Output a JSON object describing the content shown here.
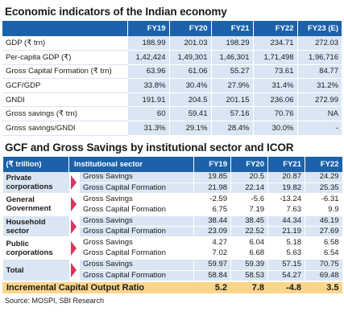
{
  "title1": "Economic indicators of the Indian economy",
  "t1": {
    "headers": [
      "FY19",
      "FY20",
      "FY21",
      "FY22",
      "FY23 (E)"
    ],
    "rows": [
      {
        "label": "GDP (₹ trn)",
        "values": [
          "188.99",
          "201.03",
          "198.29",
          "234.71",
          "272.03"
        ]
      },
      {
        "label": "Per-capita GDP (₹)",
        "values": [
          "1,42,424",
          "1,49,301",
          "1,46,301",
          "1,71,498",
          "1,96,716"
        ]
      },
      {
        "label": "Gross Capital Formation (₹ trn)",
        "values": [
          "63.96",
          "61.06",
          "55.27",
          "73.61",
          "84.77"
        ]
      },
      {
        "label": "GCF/GDP",
        "values": [
          "33.8%",
          "30.4%",
          "27.9%",
          "31.4%",
          "31.2%"
        ]
      },
      {
        "label": "GNDI",
        "values": [
          "191.91",
          "204.5",
          "201.15",
          "236.06",
          "272.99"
        ]
      },
      {
        "label": "Gross savings (₹ trn)",
        "values": [
          "60",
          "59.41",
          "57.16",
          "70.76",
          "NA"
        ]
      },
      {
        "label": "Gross savings/GNDI",
        "values": [
          "31.3%",
          "29.1%",
          "28.4%",
          "30.0%",
          "-"
        ]
      }
    ]
  },
  "title2": "GCF and Gross Savings by institutional sector and ICOR",
  "t2": {
    "corner": "(₹ trillion)",
    "sector_header": "Institutional sector",
    "headers": [
      "FY19",
      "FY20",
      "FY21",
      "FY22"
    ],
    "groups": [
      {
        "name": "Private corporations",
        "rows": [
          {
            "sector": "Gross Savings",
            "values": [
              "19.85",
              "20.5",
              "20.87",
              "24.29"
            ]
          },
          {
            "sector": "Gross Capital Formation",
            "values": [
              "21.98",
              "22.14",
              "19.82",
              "25.35"
            ]
          }
        ]
      },
      {
        "name": "General Government",
        "rows": [
          {
            "sector": "Gross Savings",
            "values": [
              "-2.59",
              "-5.6",
              "-13.24",
              "-6.31"
            ]
          },
          {
            "sector": "Gross Capital Formation",
            "values": [
              "6.75",
              "7.19",
              "7.63",
              "9.9"
            ]
          }
        ]
      },
      {
        "name": "Household sector",
        "rows": [
          {
            "sector": "Gross Savings",
            "values": [
              "38.44",
              "38.45",
              "44.34",
              "46.19"
            ]
          },
          {
            "sector": "Gross Capital Formation",
            "values": [
              "23.09",
              "22.52",
              "21.19",
              "27.69"
            ]
          }
        ]
      },
      {
        "name": "Public corporations",
        "rows": [
          {
            "sector": "Gross Savings",
            "values": [
              "4.27",
              "6.04",
              "5.18",
              "6.58"
            ]
          },
          {
            "sector": "Gross Capital Formation",
            "values": [
              "7.02",
              "6.68",
              "5.63",
              "6.54"
            ]
          }
        ]
      },
      {
        "name": "Total",
        "rows": [
          {
            "sector": "Gross Savings",
            "values": [
              "59.97",
              "59.39",
              "57.15",
              "70.75"
            ]
          },
          {
            "sector": "Gross Capital Formation",
            "values": [
              "58.84",
              "58.53",
              "54.27",
              "69.48"
            ]
          }
        ]
      }
    ],
    "icor": {
      "label": "Incremental Capital Output Ratio",
      "values": [
        "5.2",
        "7.8",
        "-4.8",
        "3.5"
      ]
    }
  },
  "source": "Source: MOSPI, SBI Research",
  "colors": {
    "header_blue": "#1b62ab",
    "cell_blue": "#dae6f4",
    "arrow_pink": "#e0315e",
    "icor_yellow": "#fbd58a"
  }
}
